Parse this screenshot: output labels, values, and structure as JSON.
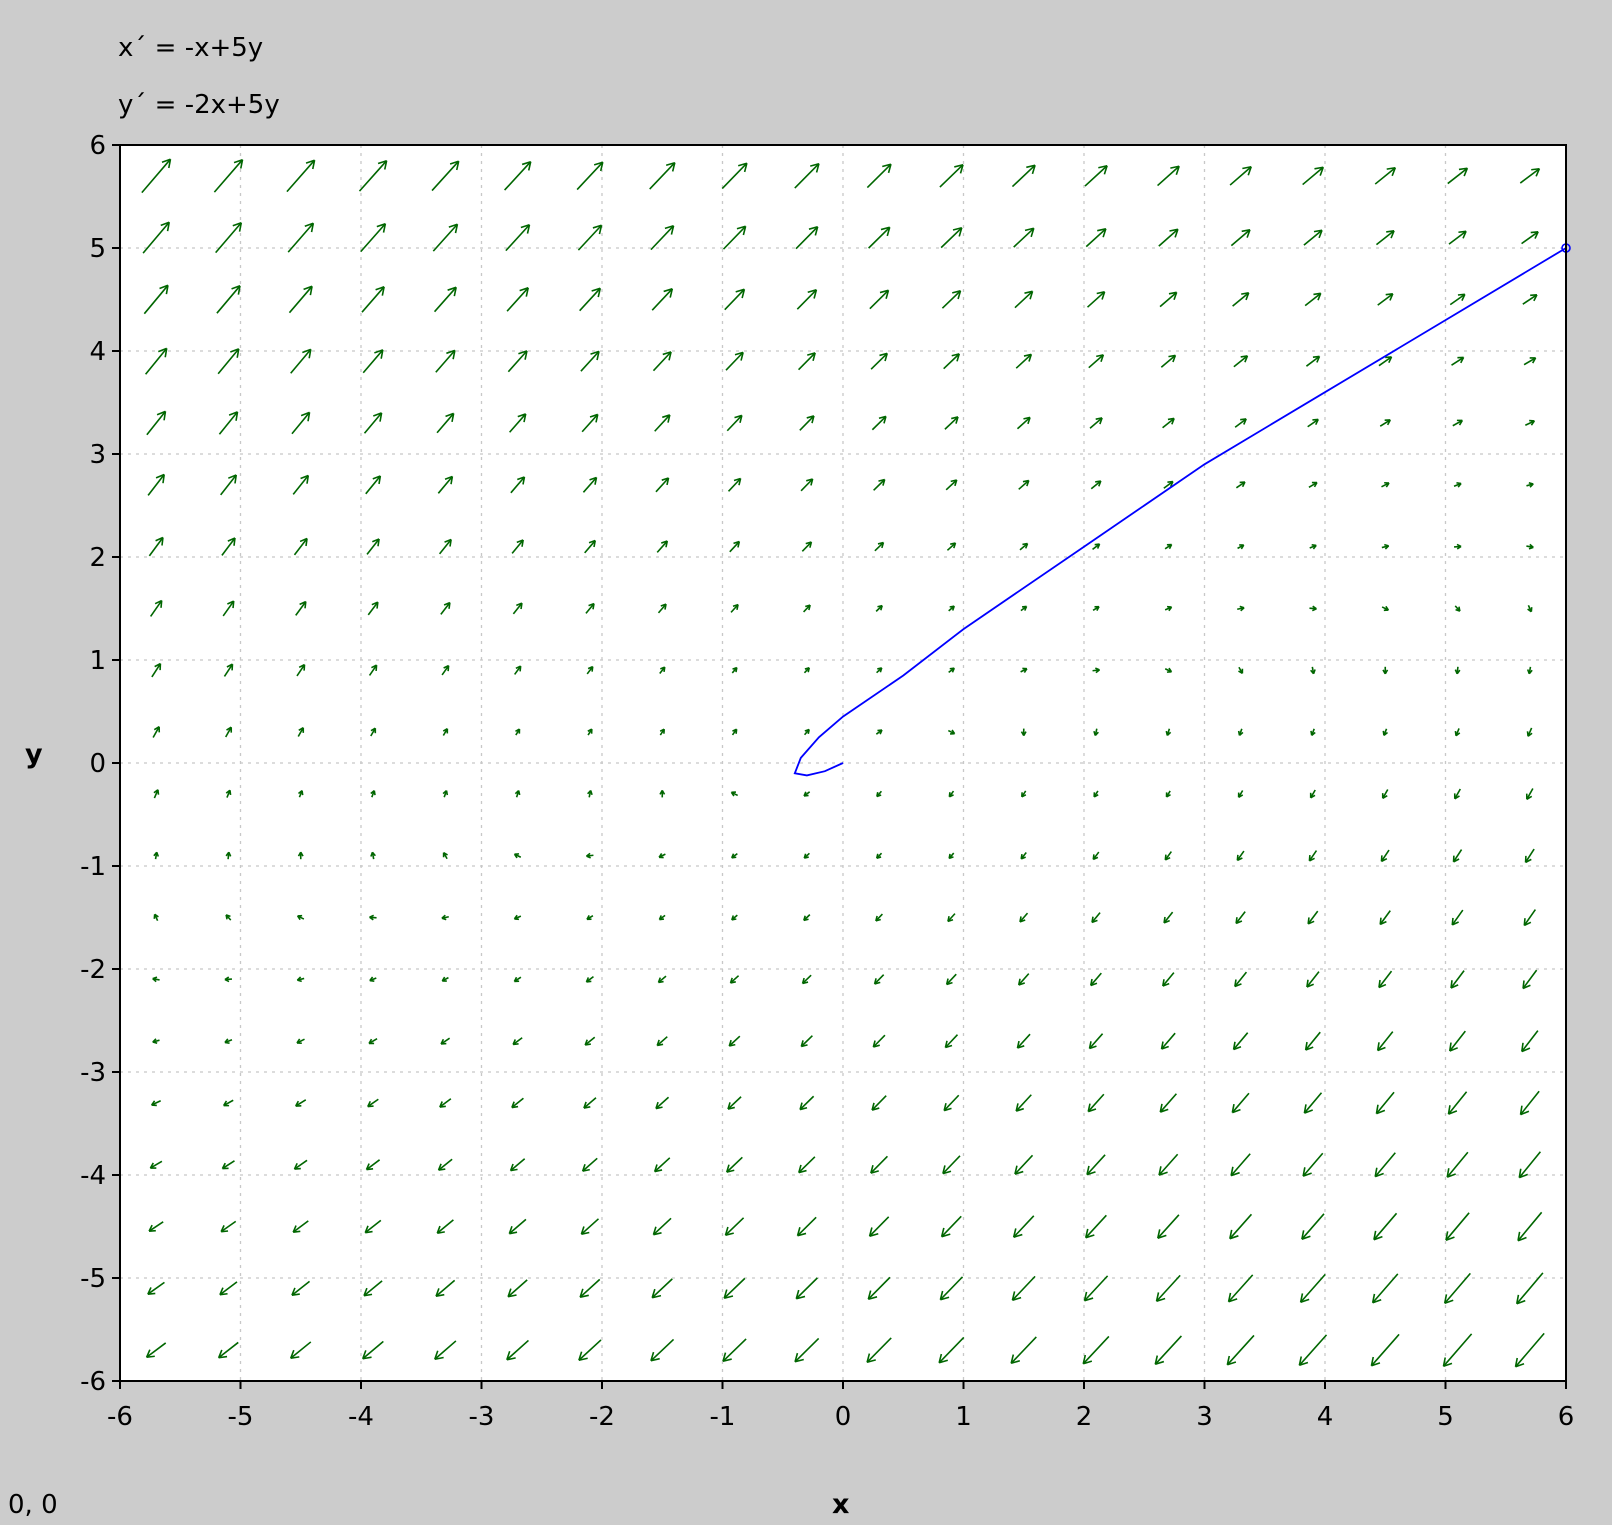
{
  "equations": {
    "x_prime": "x´ = -x+5y",
    "y_prime": "y´ = -2x+5y"
  },
  "cursor_readout": "0,  0",
  "chart_data": {
    "type": "vector_field",
    "title": "",
    "xlabel": "x",
    "ylabel": "y",
    "xlim": [
      -6,
      6
    ],
    "ylim": [
      -6,
      6
    ],
    "x_ticks": [
      -6,
      -5,
      -4,
      -3,
      -2,
      -1,
      0,
      1,
      2,
      3,
      4,
      5,
      6
    ],
    "y_ticks": [
      -6,
      -5,
      -4,
      -3,
      -2,
      -1,
      0,
      1,
      2,
      3,
      4,
      5,
      6
    ],
    "x_tick_labels": [
      "-6",
      "-5",
      "-4",
      "-3",
      "-2",
      "-1",
      "0",
      "1",
      "2",
      "3",
      "4",
      "5",
      "6"
    ],
    "y_tick_labels": [
      "-6",
      "-5",
      "-4",
      "-3",
      "-2",
      "-1",
      "0",
      "1",
      "2",
      "3",
      "4",
      "5",
      "6"
    ],
    "grid": true,
    "vector_field": {
      "dx": {
        "x": -1,
        "y": 5
      },
      "dy": {
        "x": -2,
        "y": 5
      },
      "x_samples": [
        -5.7,
        -5.1,
        -4.5,
        -3.9,
        -3.3,
        -2.7,
        -2.1,
        -1.5,
        -0.9,
        -0.3,
        0.3,
        0.9,
        1.5,
        2.1,
        2.7,
        3.3,
        3.9,
        4.5,
        5.1,
        5.7
      ],
      "y_samples": [
        5.7,
        5.1,
        4.5,
        3.9,
        3.3,
        2.7,
        2.1,
        1.5,
        0.9,
        0.3,
        -0.3,
        -0.9,
        -1.5,
        -2.1,
        -2.7,
        -3.3,
        -3.9,
        -4.5,
        -5.1,
        -5.7
      ],
      "color": "#006600"
    },
    "trajectory": {
      "color": "#0000ff",
      "points": [
        [
          6.0,
          5.0
        ],
        [
          5.0,
          4.3
        ],
        [
          4.0,
          3.6
        ],
        [
          3.0,
          2.9
        ],
        [
          2.0,
          2.1
        ],
        [
          1.0,
          1.3
        ],
        [
          0.5,
          0.85
        ],
        [
          0.0,
          0.45
        ],
        [
          -0.2,
          0.25
        ],
        [
          -0.35,
          0.05
        ],
        [
          -0.4,
          -0.1
        ],
        [
          -0.3,
          -0.12
        ],
        [
          -0.15,
          -0.08
        ],
        [
          0.0,
          0.0
        ]
      ]
    }
  }
}
